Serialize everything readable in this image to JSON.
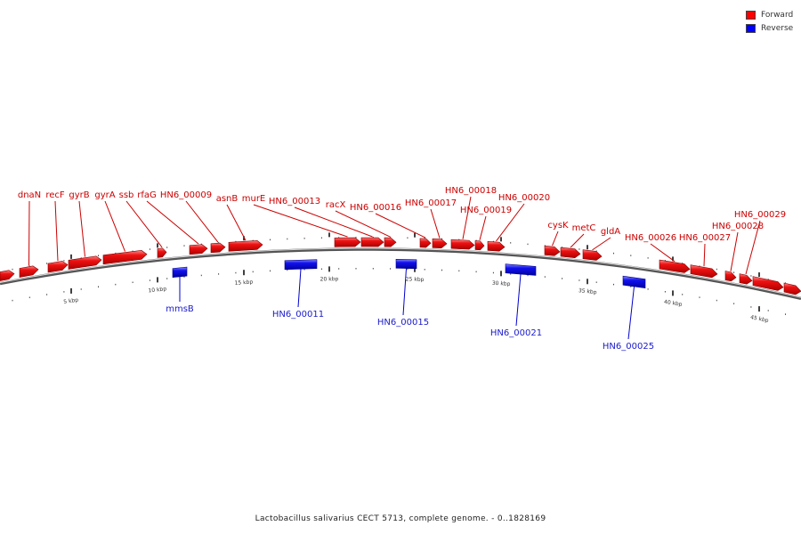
{
  "legend": {
    "forward": {
      "label": "Forward",
      "color": "#ff0000"
    },
    "reverse": {
      "label": "Reverse",
      "color": "#0000ff"
    }
  },
  "caption": "Lactobacillus salivarius CECT 5713, complete genome. - 0..1828169",
  "ticks": [
    "5 kbp",
    "10 kbp",
    "15 kbp",
    "20 kbp",
    "25 kbp",
    "30 kbp",
    "35 kbp",
    "40 kbp",
    "45 kbp"
  ],
  "forward_genes": [
    "dnaN",
    "recF",
    "gyrB",
    "gyrA",
    "ssb",
    "rfaG",
    "HN6_00009",
    "asnB",
    "murE",
    "HN6_00013",
    "racX",
    "HN6_00016",
    "HN6_00017",
    "HN6_00018",
    "HN6_00019",
    "HN6_00020",
    "cysK",
    "metC",
    "gldA",
    "HN6_00026",
    "HN6_00027",
    "HN6_00028",
    "HN6_00029"
  ],
  "reverse_genes": [
    "mmsB",
    "HN6_00011",
    "HN6_00015",
    "HN6_00021",
    "HN6_00025"
  ]
}
